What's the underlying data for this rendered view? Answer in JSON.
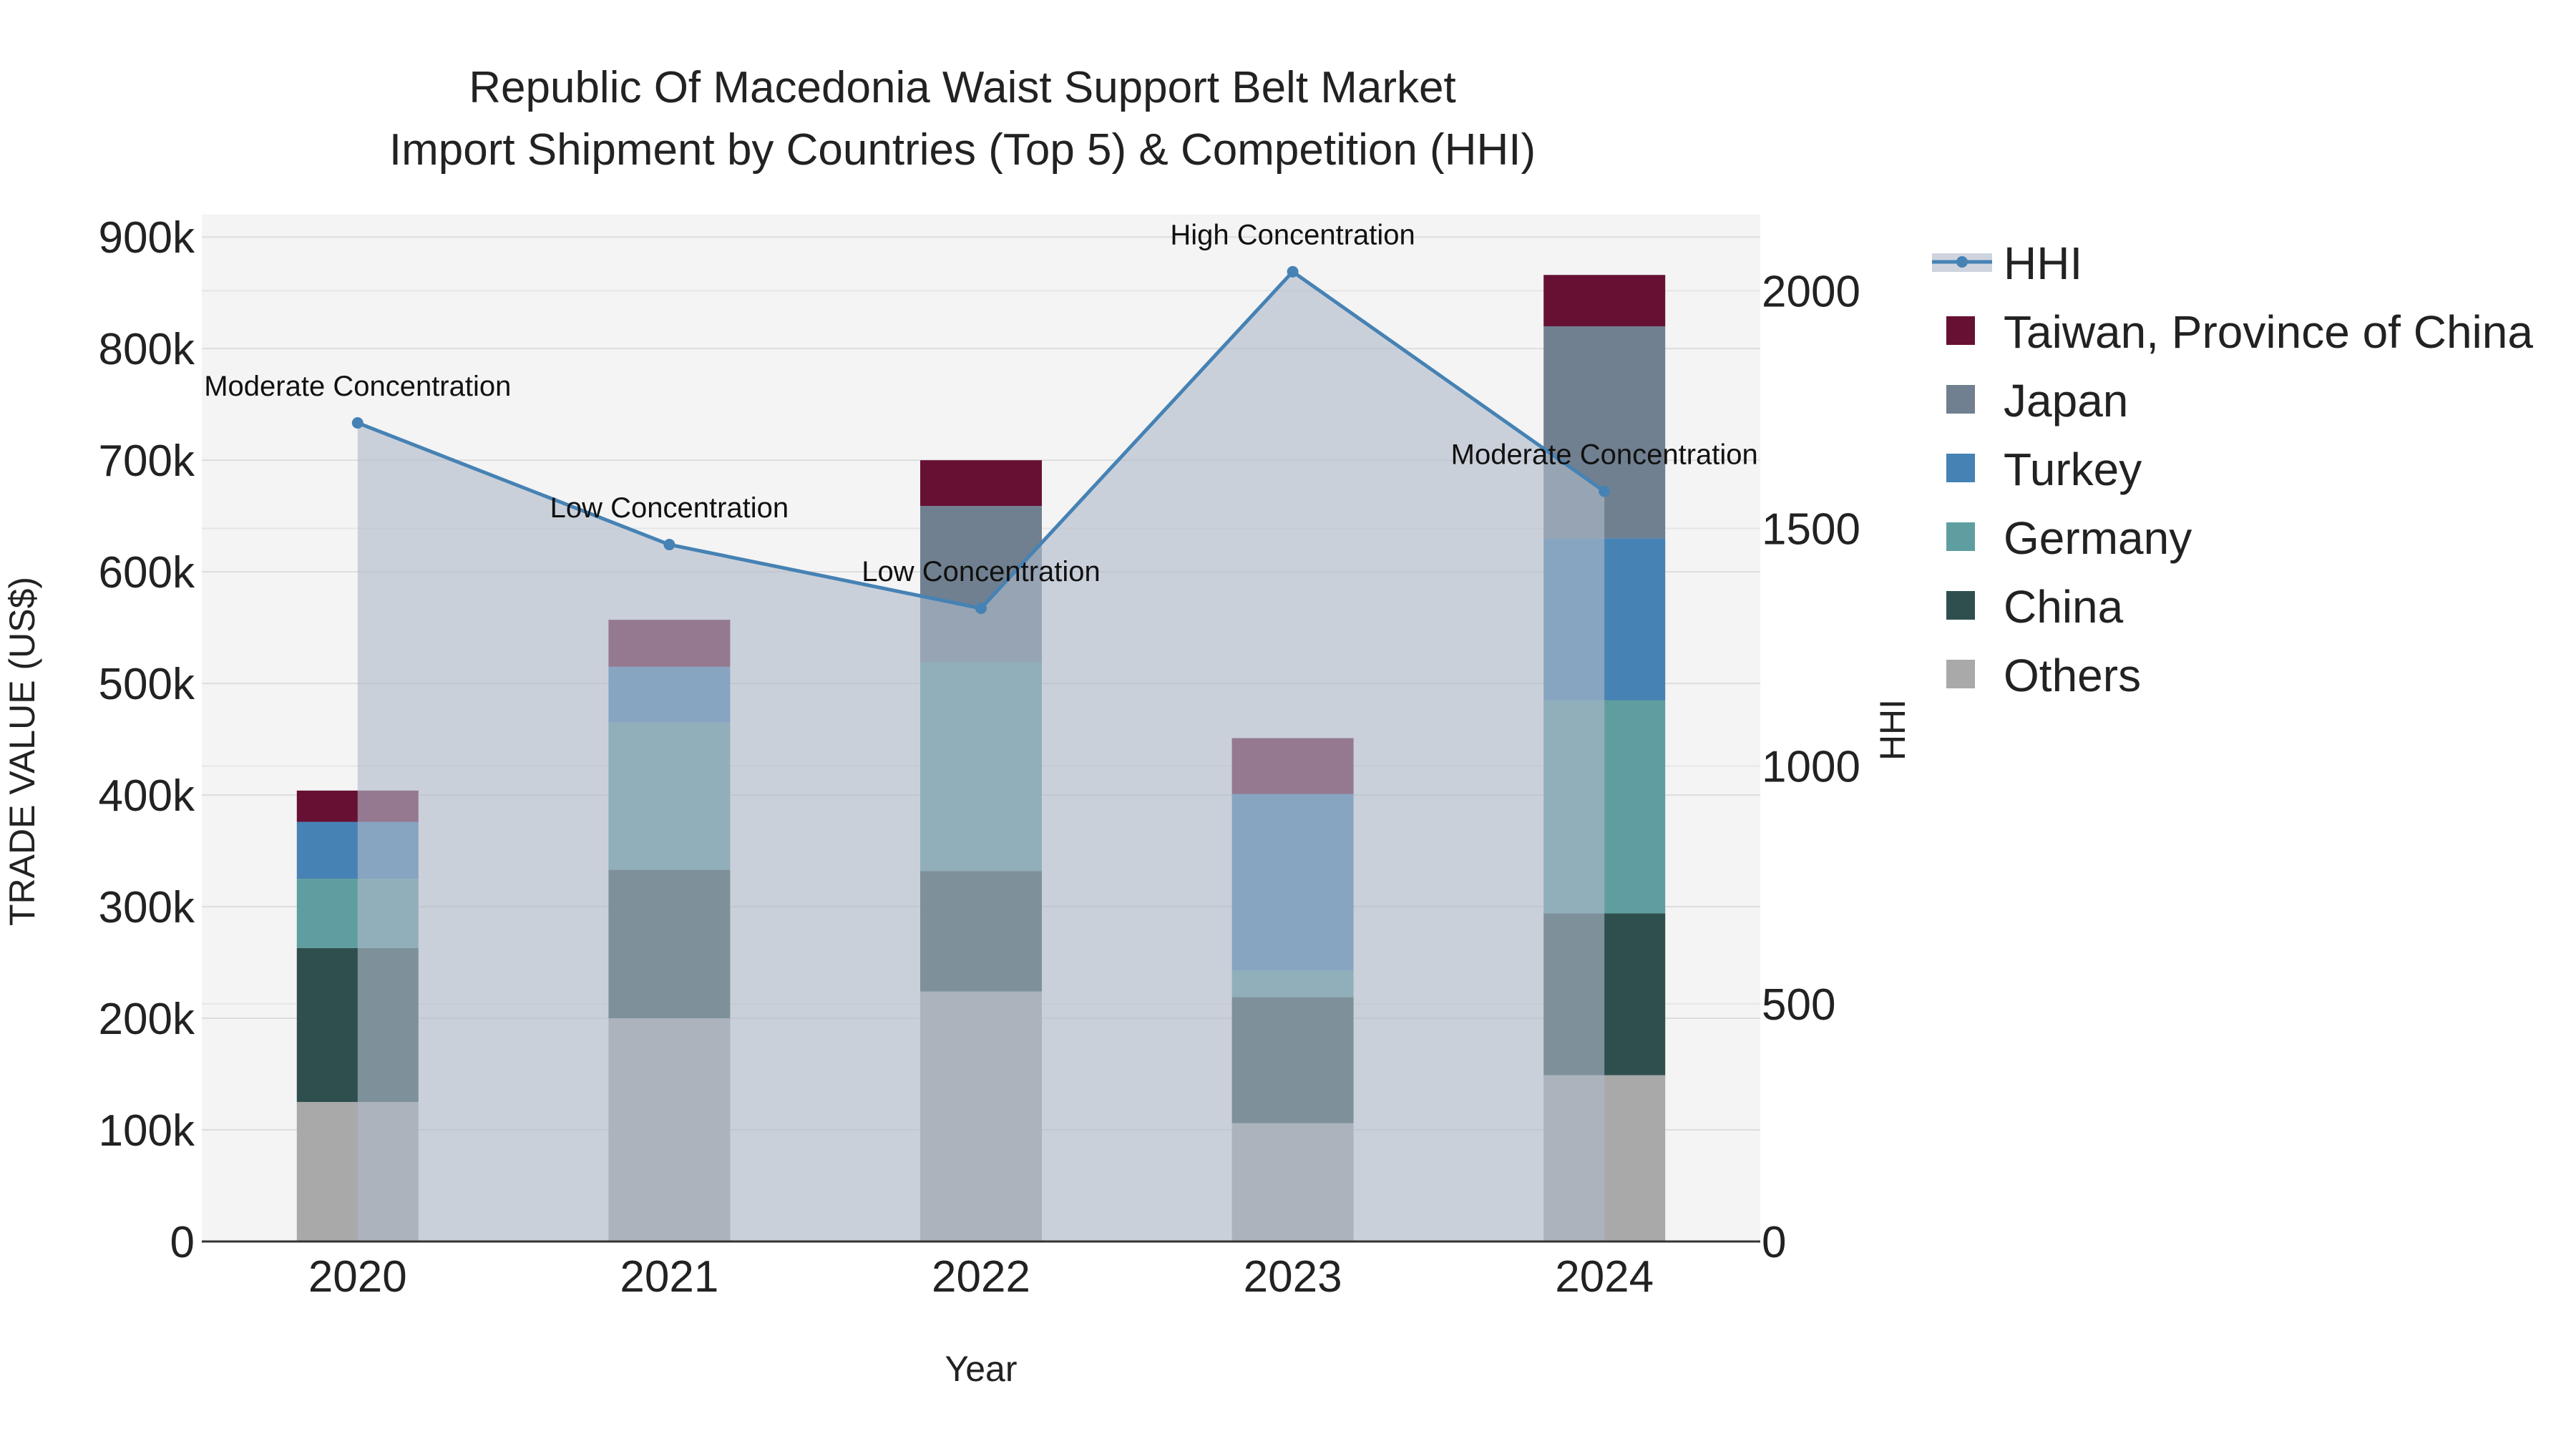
{
  "chart_data": {
    "type": "bar",
    "title": "Republic Of Macedonia Waist Support Belt Market",
    "subtitle": "Import Shipment by Countries (Top 5) & Competition (HHI)",
    "xlabel": "Year",
    "ylabel": "TRADE VALUE (US$)",
    "y2label": "HHI",
    "categories": [
      "2020",
      "2021",
      "2022",
      "2023",
      "2024"
    ],
    "ylim": [
      0,
      920000
    ],
    "y2lim": [
      0,
      2160
    ],
    "y_ticks": [
      0,
      100000,
      200000,
      300000,
      400000,
      500000,
      600000,
      700000,
      800000,
      900000
    ],
    "y_tick_labels": [
      "0",
      "100k",
      "200k",
      "300k",
      "400k",
      "500k",
      "600k",
      "700k",
      "800k",
      "900k"
    ],
    "y2_ticks": [
      0,
      500,
      1000,
      1500,
      2000
    ],
    "y2_tick_labels": [
      "0",
      "500",
      "1000",
      "1500",
      "2000"
    ],
    "series": [
      {
        "name": "Others",
        "color": "#a9a9a9",
        "values": [
          125000,
          200000,
          224000,
          106000,
          149000
        ]
      },
      {
        "name": "China",
        "color": "#2f4f4f",
        "values": [
          138000,
          133000,
          108000,
          113000,
          145000
        ]
      },
      {
        "name": "Germany",
        "color": "#5f9ea0",
        "values": [
          62000,
          132000,
          187000,
          24000,
          191000
        ]
      },
      {
        "name": "Turkey",
        "color": "#4682b4",
        "values": [
          51000,
          50000,
          0,
          158000,
          145000
        ]
      },
      {
        "name": "Japan",
        "color": "#708090",
        "values": [
          0,
          0,
          140000,
          0,
          190000
        ]
      },
      {
        "name": "Taiwan, Province of China",
        "color": "#661133",
        "values": [
          28000,
          42000,
          41000,
          50000,
          46000
        ]
      }
    ],
    "hhi": {
      "name": "HHI",
      "color": "#4682b4",
      "values": [
        1722,
        1466,
        1332,
        2040,
        1578
      ],
      "annotations": [
        "Moderate Concentration",
        "Low Concentration",
        "Low Concentration",
        "High Concentration",
        "Moderate Concentration"
      ]
    },
    "legend": [
      "HHI",
      "Taiwan, Province of China",
      "Japan",
      "Turkey",
      "Germany",
      "China",
      "Others"
    ],
    "legend_position": "right",
    "grid": true
  }
}
